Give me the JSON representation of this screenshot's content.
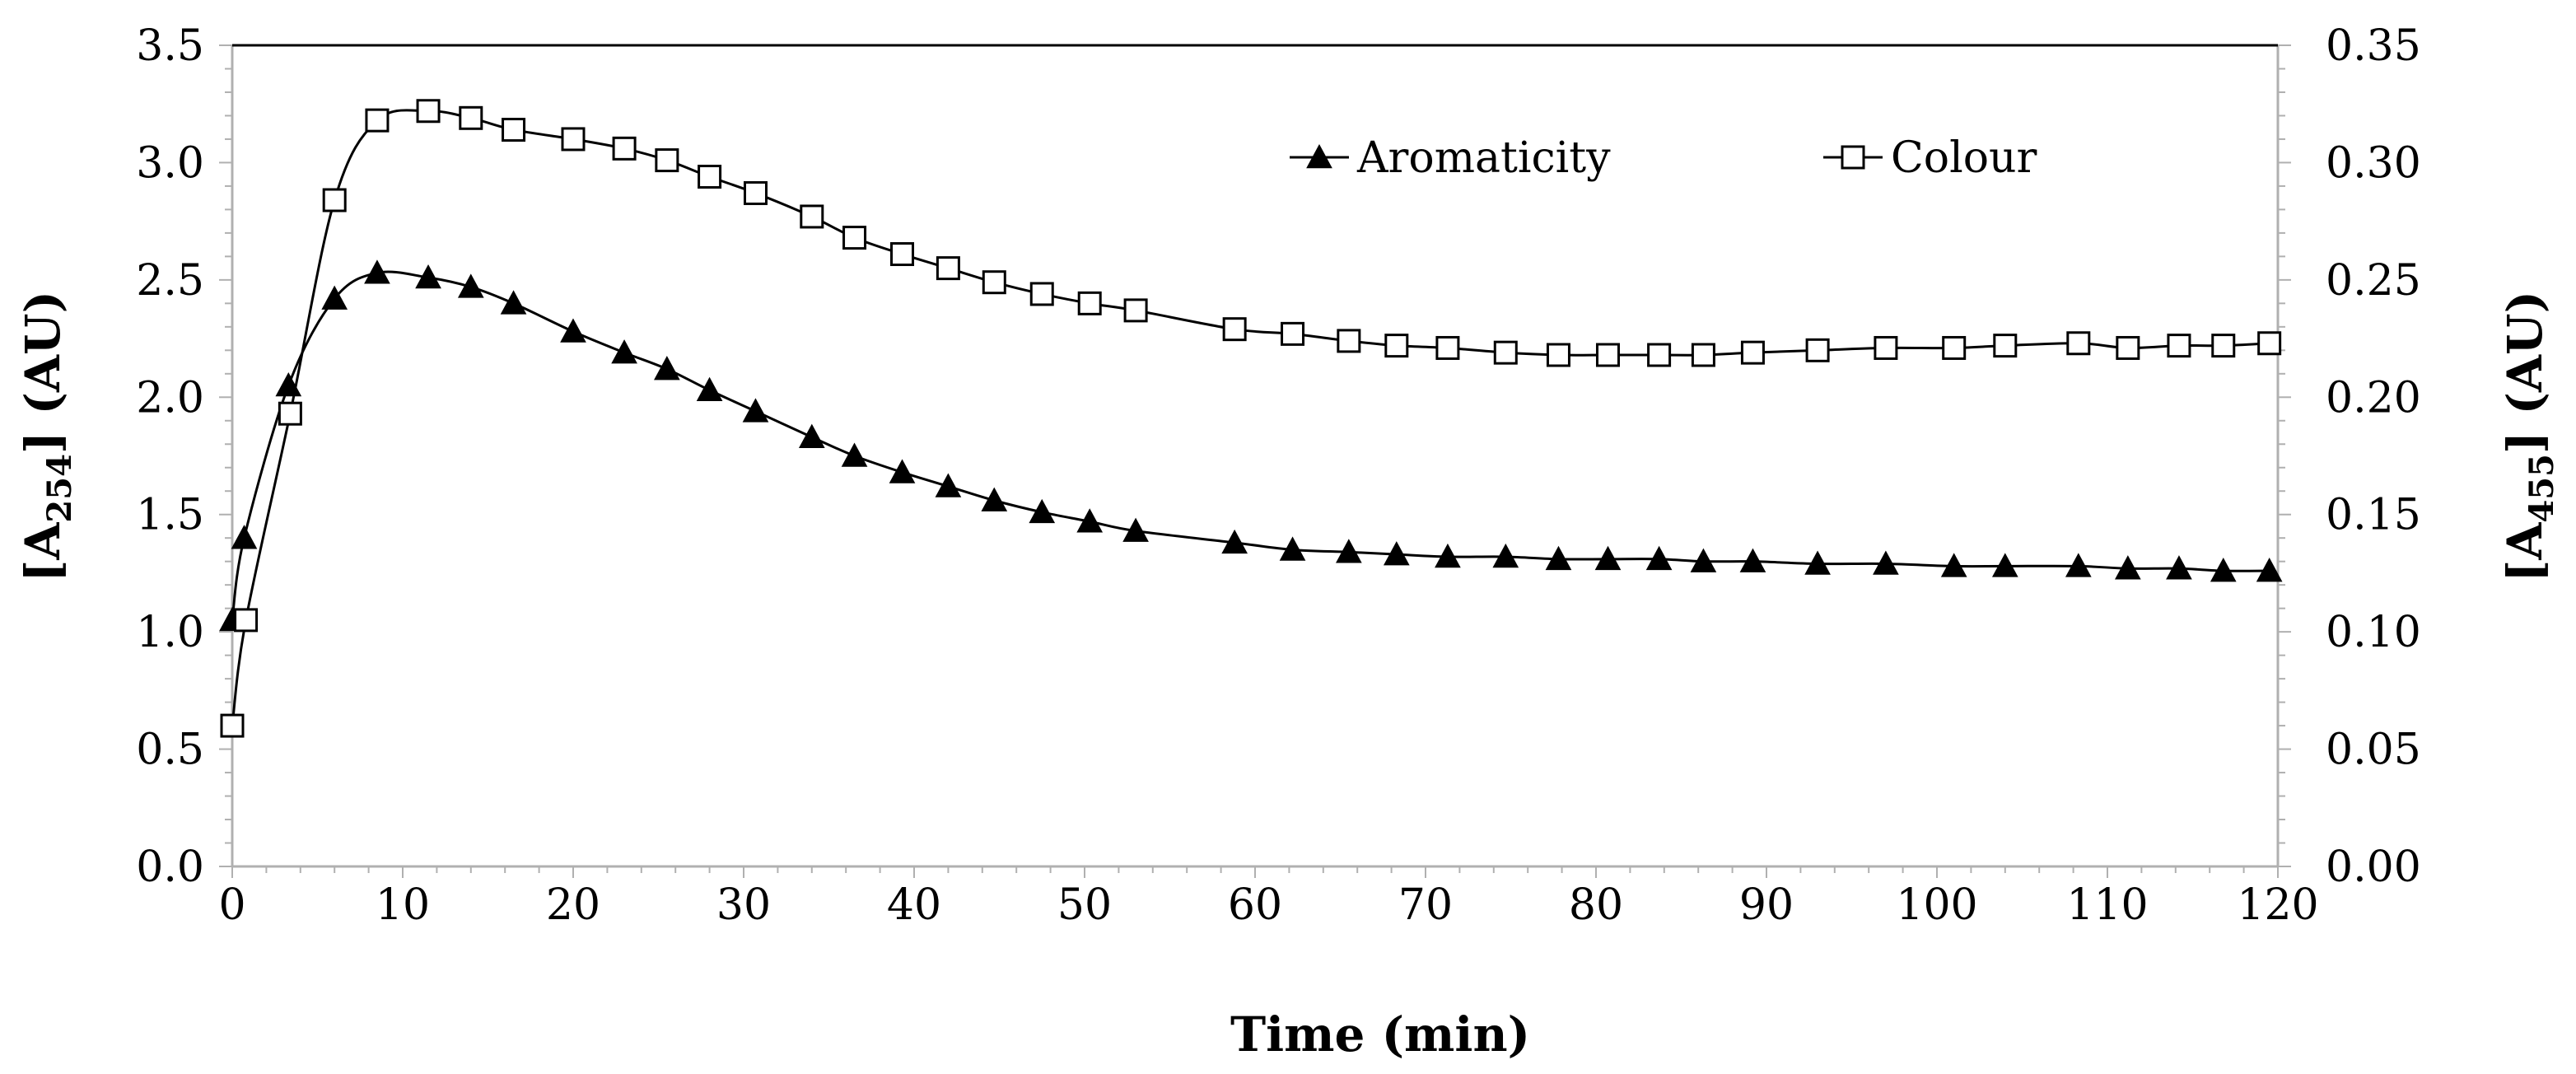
{
  "chart_data": {
    "type": "line",
    "title": "",
    "xlabel": "Time (min)",
    "ylabel_left": {
      "main": "[A",
      "sub": "254",
      "tail": "]  (AU)"
    },
    "ylabel_right": {
      "main": "[A",
      "sub": "455",
      "tail": "] (AU)"
    },
    "xlim": [
      0,
      120
    ],
    "ylim_left": [
      0,
      3.5
    ],
    "ylim_right": [
      0,
      0.35
    ],
    "x_ticks": [
      "0",
      "10",
      "20",
      "30",
      "40",
      "50",
      "60",
      "70",
      "80",
      "90",
      "100",
      "110",
      "120"
    ],
    "y_ticks_left": [
      "0.0",
      "0.5",
      "1.0",
      "1.5",
      "2.0",
      "2.5",
      "3.0",
      "3.5"
    ],
    "y_ticks_right": [
      "0.00",
      "0.05",
      "0.10",
      "0.15",
      "0.20",
      "0.25",
      "0.30",
      "0.35"
    ],
    "grid": false,
    "legend_position": "top-right",
    "series": [
      {
        "name": "Aromaticity",
        "axis": "left",
        "marker": "filled-triangle",
        "color": "#000000",
        "x": [
          0,
          0.7,
          3.3,
          6,
          8.5,
          11.5,
          14,
          16.5,
          20,
          23,
          25.5,
          28,
          30.7,
          34,
          36.5,
          39.3,
          42,
          44.7,
          47.5,
          50.3,
          53,
          58.8,
          62.2,
          65.5,
          68.3,
          71.3,
          74.7,
          77.8,
          80.7,
          83.7,
          86.3,
          89.2,
          93,
          97,
          101,
          104,
          108.3,
          111.2,
          114.2,
          116.8,
          119.5
        ],
        "values": [
          1.05,
          1.4,
          2.05,
          2.42,
          2.53,
          2.51,
          2.47,
          2.4,
          2.28,
          2.19,
          2.12,
          2.03,
          1.94,
          1.83,
          1.75,
          1.68,
          1.62,
          1.56,
          1.51,
          1.47,
          1.43,
          1.38,
          1.35,
          1.34,
          1.33,
          1.32,
          1.32,
          1.31,
          1.31,
          1.31,
          1.3,
          1.3,
          1.29,
          1.29,
          1.28,
          1.28,
          1.28,
          1.27,
          1.27,
          1.26,
          1.26
        ]
      },
      {
        "name": "Colour",
        "axis": "right",
        "marker": "open-square",
        "color": "#000000",
        "x": [
          0,
          0.8,
          3.4,
          6,
          8.5,
          11.5,
          14,
          16.5,
          20,
          23,
          25.5,
          28,
          30.7,
          34,
          36.5,
          39.3,
          42,
          44.7,
          47.5,
          50.3,
          53,
          58.8,
          62.2,
          65.5,
          68.3,
          71.3,
          74.7,
          77.8,
          80.7,
          83.7,
          86.3,
          89.2,
          93,
          97,
          101,
          104,
          108.3,
          111.2,
          114.2,
          116.8,
          119.5
        ],
        "values": [
          0.06,
          0.105,
          0.193,
          0.284,
          0.318,
          0.322,
          0.319,
          0.314,
          0.31,
          0.306,
          0.301,
          0.294,
          0.287,
          0.277,
          0.268,
          0.261,
          0.255,
          0.249,
          0.244,
          0.24,
          0.237,
          0.229,
          0.227,
          0.224,
          0.222,
          0.221,
          0.219,
          0.218,
          0.218,
          0.218,
          0.218,
          0.219,
          0.22,
          0.221,
          0.221,
          0.222,
          0.223,
          0.221,
          0.222,
          0.222,
          0.223
        ]
      }
    ]
  }
}
